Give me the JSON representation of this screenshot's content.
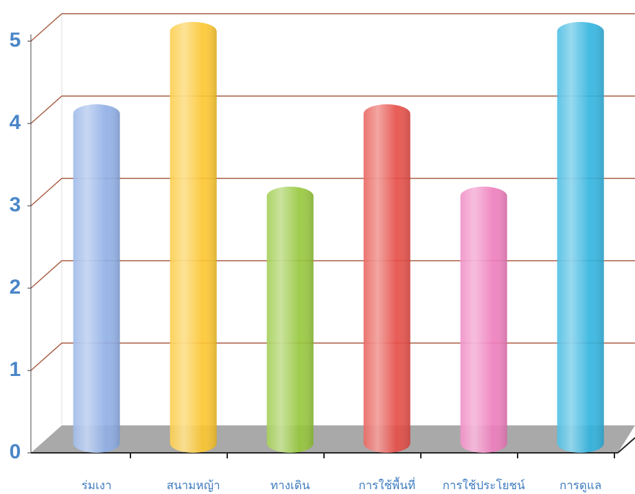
{
  "chart_data": {
    "type": "bar",
    "categories": [
      "ร่มเงา",
      "สนามหญ้า",
      "ทางเดิน",
      "การใช้พื้นที่",
      "การใช้ประโยชน์",
      "การดูแล"
    ],
    "values": [
      4,
      5,
      3,
      4,
      3,
      5
    ],
    "colors": [
      "#8eaee6",
      "#fcc52c",
      "#95c63a",
      "#e64b45",
      "#ee7cbd",
      "#2fb2df"
    ],
    "ylim": [
      0,
      5
    ],
    "yticks": [
      0,
      1,
      2,
      3,
      4,
      5
    ],
    "grid": true
  }
}
